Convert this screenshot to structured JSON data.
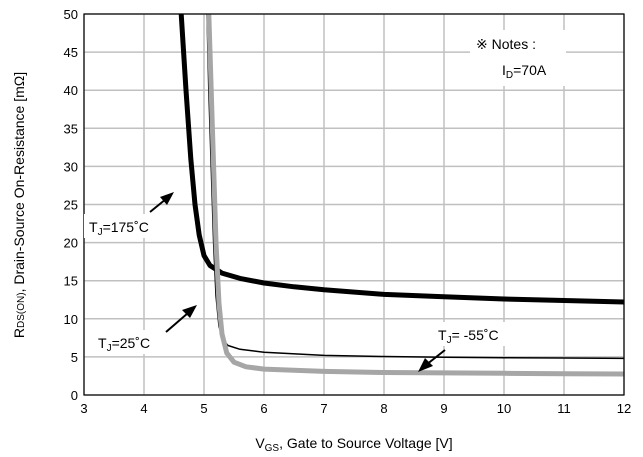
{
  "chart_data": {
    "type": "line",
    "xlabel_main": "V",
    "xlabel_sub": "GS",
    "xlabel_rest": ", Gate to Source Voltage [V]",
    "ylabel_main": "R",
    "ylabel_sub": "DS(ON)",
    "ylabel_rest": ", Drain-Source On-Resistance [mΩ]",
    "xlim": [
      3,
      12
    ],
    "ylim": [
      0,
      50
    ],
    "xticks": [
      3,
      4,
      5,
      6,
      7,
      8,
      9,
      10,
      11,
      12
    ],
    "yticks": [
      0,
      5,
      10,
      15,
      20,
      25,
      30,
      35,
      40,
      45,
      50
    ],
    "grid": true,
    "notes": {
      "line1": "※ Notes :",
      "line2_main": "I",
      "line2_sub": "D",
      "line2_rest": "=70A"
    },
    "series": [
      {
        "name": "T_J=175°C",
        "color": "#000000",
        "width": 5,
        "points": [
          [
            4.62,
            50
          ],
          [
            4.7,
            40
          ],
          [
            4.78,
            31
          ],
          [
            4.85,
            25
          ],
          [
            4.92,
            21
          ],
          [
            5.0,
            18.3
          ],
          [
            5.1,
            17.0
          ],
          [
            5.3,
            16.0
          ],
          [
            5.6,
            15.3
          ],
          [
            6.0,
            14.7
          ],
          [
            6.5,
            14.2
          ],
          [
            7.0,
            13.8
          ],
          [
            8.0,
            13.2
          ],
          [
            9.0,
            12.9
          ],
          [
            10.0,
            12.6
          ],
          [
            11.0,
            12.4
          ],
          [
            12.0,
            12.2
          ]
        ]
      },
      {
        "name": "T_J=25°C",
        "color": "#000000",
        "width": 1.5,
        "points": [
          [
            5.05,
            50
          ],
          [
            5.08,
            40
          ],
          [
            5.12,
            30
          ],
          [
            5.16,
            20
          ],
          [
            5.2,
            13
          ],
          [
            5.25,
            9
          ],
          [
            5.32,
            7.2
          ],
          [
            5.4,
            6.5
          ],
          [
            5.6,
            6.0
          ],
          [
            6.0,
            5.6
          ],
          [
            7.0,
            5.2
          ],
          [
            8.0,
            5.05
          ],
          [
            9.0,
            4.95
          ],
          [
            10.0,
            4.9
          ],
          [
            11.0,
            4.85
          ],
          [
            12.0,
            4.8
          ]
        ]
      },
      {
        "name": "T_J= -55°C",
        "color": "#a6a6a6",
        "width": 5,
        "points": [
          [
            5.08,
            50
          ],
          [
            5.12,
            40
          ],
          [
            5.16,
            30
          ],
          [
            5.2,
            20
          ],
          [
            5.25,
            12
          ],
          [
            5.3,
            8
          ],
          [
            5.38,
            5.5
          ],
          [
            5.5,
            4.3
          ],
          [
            5.7,
            3.7
          ],
          [
            6.0,
            3.4
          ],
          [
            7.0,
            3.1
          ],
          [
            8.0,
            2.95
          ],
          [
            9.0,
            2.9
          ],
          [
            10.0,
            2.85
          ],
          [
            11.0,
            2.8
          ],
          [
            12.0,
            2.75
          ]
        ]
      }
    ],
    "annotations": [
      {
        "main": "T",
        "sub": "J",
        "rest": "=175˚C"
      },
      {
        "main": "T",
        "sub": "J",
        "rest": "=25˚C"
      },
      {
        "main": "T",
        "sub": "J",
        "rest": "= -55˚C"
      }
    ]
  }
}
